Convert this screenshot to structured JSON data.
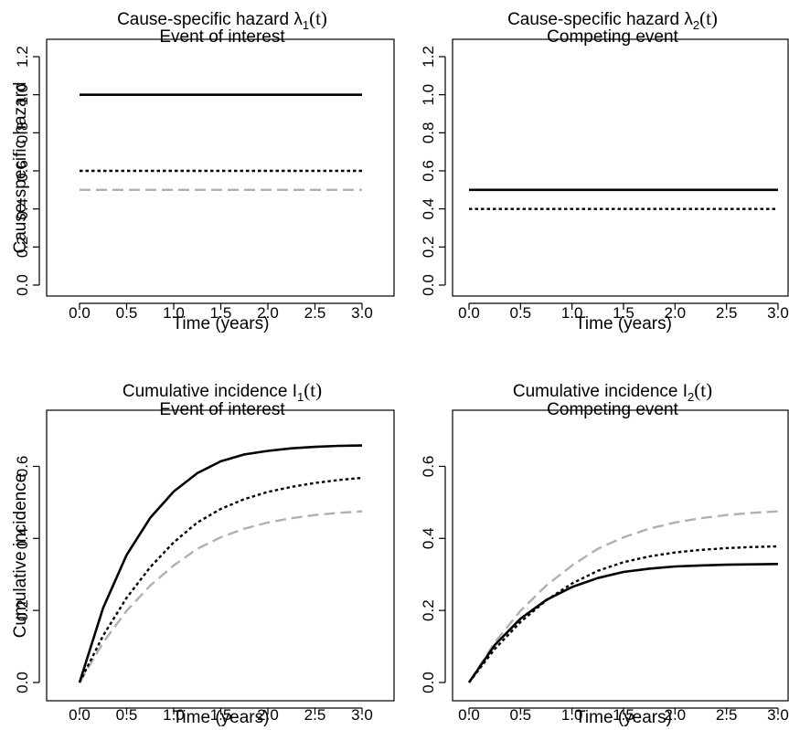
{
  "figure": {
    "panels": [
      {
        "title_main": "Cause-specific hazard λ",
        "title_sub_index": "1",
        "title_suffix": "(t)",
        "title_line2": "Event of interest",
        "xlabel": "Time (years)",
        "ylabel": "Cause-specific hazard"
      },
      {
        "title_main": "Cause-specific hazard λ",
        "title_sub_index": "2",
        "title_suffix": "(t)",
        "title_line2": "Competing event",
        "xlabel": "Time (years)",
        "ylabel": ""
      },
      {
        "title_main": "Cumulative incidence I",
        "title_sub_index": "1",
        "title_suffix": "(t)",
        "title_line2": "Event of interest",
        "xlabel": "Time (years)",
        "ylabel": "Cumulative incidence"
      },
      {
        "title_main": "Cumulative incidence I",
        "title_sub_index": "2",
        "title_suffix": "(t)",
        "title_line2": "Competing event",
        "xlabel": "Time (years)",
        "ylabel": ""
      }
    ]
  },
  "series_styles": [
    {
      "color": "#000000",
      "dash": "solid"
    },
    {
      "color": "#000000",
      "dash": "dotted"
    },
    {
      "color": "#b0b0b0",
      "dash": "dashed"
    }
  ],
  "chart_data": [
    {
      "type": "line",
      "xlim": [
        0,
        3
      ],
      "ylim": [
        0,
        1.2
      ],
      "xticks": [
        "0.0",
        "0.5",
        "1.0",
        "1.5",
        "2.0",
        "2.5",
        "3.0"
      ],
      "yticks": [
        "0.0",
        "0.2",
        "0.4",
        "0.6",
        "0.8",
        "1.0",
        "1.2"
      ],
      "x": [
        0,
        3
      ],
      "series": [
        {
          "values": [
            1.0,
            1.0
          ]
        },
        {
          "values": [
            0.6,
            0.6
          ]
        },
        {
          "values": [
            0.5,
            0.5
          ]
        }
      ]
    },
    {
      "type": "line",
      "xlim": [
        0,
        3
      ],
      "ylim": [
        0,
        1.2
      ],
      "xticks": [
        "0.0",
        "0.5",
        "1.0",
        "1.5",
        "2.0",
        "2.5",
        "3.0"
      ],
      "yticks": [
        "0.0",
        "0.2",
        "0.4",
        "0.6",
        "0.8",
        "1.0",
        "1.2"
      ],
      "x": [
        0,
        3
      ],
      "series": [
        {
          "values": [
            0.5,
            0.5
          ]
        },
        {
          "values": [
            0.4,
            0.4
          ]
        },
        {
          "values": [
            0.5,
            0.5
          ]
        }
      ]
    },
    {
      "type": "line",
      "xlim": [
        0,
        3
      ],
      "ylim": [
        0,
        0.7
      ],
      "xticks": [
        "0.0",
        "0.5",
        "1.0",
        "1.5",
        "2.0",
        "2.5",
        "3.0"
      ],
      "yticks": [
        "0.0",
        "0.2",
        "0.4",
        "0.6"
      ],
      "x": [
        0,
        0.25,
        0.5,
        0.75,
        1.0,
        1.25,
        1.5,
        1.75,
        2.0,
        2.25,
        2.5,
        2.75,
        3.0
      ],
      "series": [
        {
          "values": [
            0,
            0.207,
            0.354,
            0.457,
            0.53,
            0.581,
            0.614,
            0.633,
            0.643,
            0.65,
            0.654,
            0.657,
            0.658
          ]
        },
        {
          "values": [
            0,
            0.13,
            0.235,
            0.32,
            0.389,
            0.444,
            0.482,
            0.509,
            0.529,
            0.543,
            0.554,
            0.562,
            0.568
          ]
        },
        {
          "values": [
            0,
            0.111,
            0.199,
            0.269,
            0.325,
            0.371,
            0.403,
            0.427,
            0.444,
            0.456,
            0.465,
            0.471,
            0.475
          ]
        }
      ]
    },
    {
      "type": "line",
      "xlim": [
        0,
        3
      ],
      "ylim": [
        0,
        0.7
      ],
      "xticks": [
        "0.0",
        "0.5",
        "1.0",
        "1.5",
        "2.0",
        "2.5",
        "3.0"
      ],
      "yticks": [
        "0.0",
        "0.2",
        "0.4",
        "0.6"
      ],
      "x": [
        0,
        0.25,
        0.5,
        0.75,
        1.0,
        1.25,
        1.5,
        1.75,
        2.0,
        2.25,
        2.5,
        2.75,
        3.0
      ],
      "series": [
        {
          "values": [
            0,
            0.104,
            0.177,
            0.229,
            0.265,
            0.29,
            0.307,
            0.316,
            0.322,
            0.325,
            0.327,
            0.328,
            0.329
          ]
        },
        {
          "values": [
            0,
            0.093,
            0.168,
            0.228,
            0.275,
            0.31,
            0.334,
            0.35,
            0.361,
            0.368,
            0.373,
            0.376,
            0.378
          ]
        },
        {
          "values": [
            0,
            0.111,
            0.199,
            0.269,
            0.325,
            0.371,
            0.403,
            0.427,
            0.444,
            0.456,
            0.465,
            0.471,
            0.475
          ]
        }
      ]
    }
  ]
}
